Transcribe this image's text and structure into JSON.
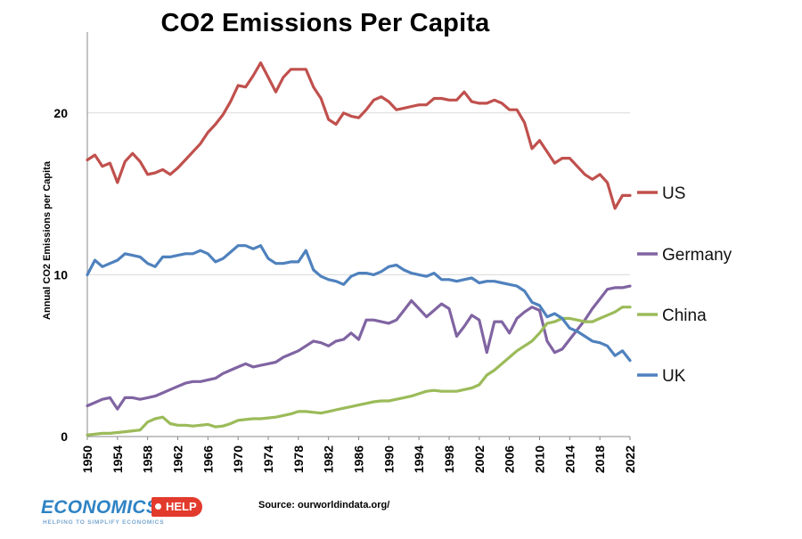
{
  "chart_data": {
    "type": "line",
    "title": "CO2 Emissions Per Capita",
    "xlabel": "",
    "ylabel": "Annual CO2 Emissions per Capita",
    "xlim": [
      1950,
      2022
    ],
    "ylim": [
      0,
      25
    ],
    "y_ticks": [
      0,
      10,
      20
    ],
    "x_ticks": [
      1950,
      1954,
      1958,
      1962,
      1966,
      1970,
      1974,
      1978,
      1982,
      1986,
      1990,
      1994,
      1998,
      2002,
      2006,
      2010,
      2014,
      2018,
      2022
    ],
    "grid": "horizontal",
    "legend_position": "right",
    "x": [
      1950,
      1951,
      1952,
      1953,
      1954,
      1955,
      1956,
      1957,
      1958,
      1959,
      1960,
      1961,
      1962,
      1963,
      1964,
      1965,
      1966,
      1967,
      1968,
      1969,
      1970,
      1971,
      1972,
      1973,
      1974,
      1975,
      1976,
      1977,
      1978,
      1979,
      1980,
      1981,
      1982,
      1983,
      1984,
      1985,
      1986,
      1987,
      1988,
      1989,
      1990,
      1991,
      1992,
      1993,
      1994,
      1995,
      1996,
      1997,
      1998,
      1999,
      2000,
      2001,
      2002,
      2003,
      2004,
      2005,
      2006,
      2007,
      2008,
      2009,
      2010,
      2011,
      2012,
      2013,
      2014,
      2015,
      2016,
      2017,
      2018,
      2019,
      2020,
      2021,
      2022
    ],
    "series": [
      {
        "name": "US",
        "color": "#c0504d",
        "values": [
          17.1,
          17.4,
          16.7,
          16.9,
          15.7,
          17.0,
          17.5,
          17.0,
          16.2,
          16.3,
          16.5,
          16.2,
          16.6,
          17.1,
          17.6,
          18.1,
          18.8,
          19.3,
          19.9,
          20.7,
          21.7,
          21.6,
          22.3,
          23.1,
          22.2,
          21.3,
          22.2,
          22.7,
          22.7,
          22.7,
          21.6,
          20.9,
          19.6,
          19.3,
          20.0,
          19.8,
          19.7,
          20.2,
          20.8,
          21.0,
          20.7,
          20.2,
          20.3,
          20.4,
          20.5,
          20.5,
          20.9,
          20.9,
          20.8,
          20.8,
          21.3,
          20.7,
          20.6,
          20.6,
          20.8,
          20.6,
          20.2,
          20.2,
          19.4,
          17.8,
          18.3,
          17.6,
          16.9,
          17.2,
          17.2,
          16.7,
          16.2,
          15.9,
          16.2,
          15.7,
          14.1,
          14.9,
          14.9
        ]
      },
      {
        "name": "Germany",
        "color": "#8064a2",
        "values": [
          1.9,
          2.1,
          2.3,
          2.4,
          1.7,
          2.4,
          2.4,
          2.3,
          2.4,
          2.5,
          2.7,
          2.9,
          3.1,
          3.3,
          3.4,
          3.4,
          3.5,
          3.6,
          3.9,
          4.1,
          4.3,
          4.5,
          4.3,
          4.4,
          4.5,
          4.6,
          4.9,
          5.1,
          5.3,
          5.6,
          5.9,
          5.8,
          5.6,
          5.9,
          6.0,
          6.4,
          6.0,
          7.2,
          7.2,
          7.1,
          7.0,
          7.2,
          7.8,
          8.4,
          7.9,
          7.4,
          7.8,
          8.2,
          7.9,
          6.2,
          6.8,
          7.5,
          7.2,
          5.2,
          7.1,
          7.1,
          6.4,
          7.3,
          7.7,
          8.0,
          7.8,
          5.9,
          5.2,
          5.4,
          6.0,
          6.6,
          7.2,
          7.9,
          8.5,
          9.1,
          9.2,
          9.2,
          9.3
        ]
      },
      {
        "name": "China",
        "color": "#9bbb59",
        "values": [
          0.1,
          0.15,
          0.2,
          0.2,
          0.25,
          0.3,
          0.35,
          0.4,
          0.9,
          1.1,
          1.2,
          0.8,
          0.7,
          0.7,
          0.65,
          0.7,
          0.75,
          0.6,
          0.65,
          0.8,
          1.0,
          1.05,
          1.1,
          1.1,
          1.15,
          1.2,
          1.3,
          1.4,
          1.55,
          1.55,
          1.5,
          1.45,
          1.55,
          1.65,
          1.75,
          1.85,
          1.95,
          2.05,
          2.15,
          2.2,
          2.2,
          2.3,
          2.4,
          2.5,
          2.65,
          2.8,
          2.85,
          2.8,
          2.8,
          2.8,
          2.9,
          3.0,
          3.2,
          3.8,
          4.1,
          4.5,
          4.9,
          5.3,
          5.6,
          5.9,
          6.4,
          7.0,
          7.1,
          7.3,
          7.3,
          7.2,
          7.1,
          7.1,
          7.3,
          7.5,
          7.7,
          8.0,
          8.0
        ]
      },
      {
        "name": "UK",
        "color": "#4f81bd",
        "values": [
          10.0,
          10.9,
          10.5,
          10.7,
          10.9,
          11.3,
          11.2,
          11.1,
          10.7,
          10.5,
          11.1,
          11.1,
          11.2,
          11.3,
          11.3,
          11.5,
          11.3,
          10.8,
          11.0,
          11.4,
          11.8,
          11.8,
          11.6,
          11.8,
          11.0,
          10.7,
          10.7,
          10.8,
          10.8,
          11.5,
          10.3,
          9.9,
          9.7,
          9.6,
          9.4,
          9.9,
          10.1,
          10.1,
          10.0,
          10.2,
          10.5,
          10.6,
          10.3,
          10.1,
          10.0,
          9.9,
          10.1,
          9.7,
          9.7,
          9.6,
          9.7,
          9.8,
          9.5,
          9.6,
          9.6,
          9.5,
          9.4,
          9.3,
          9.0,
          8.3,
          8.1,
          7.4,
          7.6,
          7.3,
          6.7,
          6.5,
          6.2,
          5.9,
          5.8,
          5.6,
          5.0,
          5.3,
          4.7
        ]
      }
    ]
  },
  "legend": [
    "US",
    "Germany",
    "China",
    "UK"
  ],
  "source_text": "Source: ourworldindata.org/",
  "logo": {
    "word": "ECONOMICS",
    "badge": "HELP",
    "tagline": "HELPING TO SIMPLIFY ECONOMICS"
  }
}
